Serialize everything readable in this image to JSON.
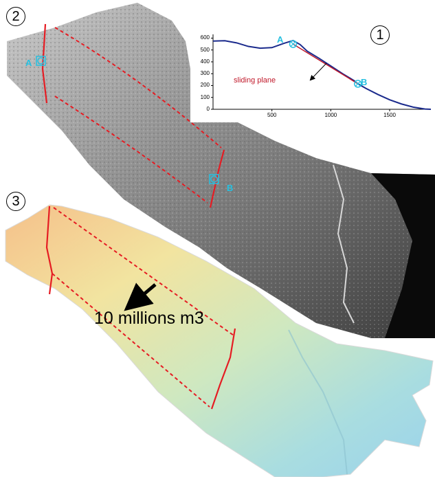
{
  "panels": {
    "profile_number": "1",
    "photo_number": "2",
    "model_number": "3"
  },
  "profile": {
    "point_a": "A",
    "point_b": "B",
    "sliding_label": "sliding plane",
    "colors": {
      "profile": "#1a2a8c",
      "sliding_plane": "#c0182a",
      "markers": "#27c0e0"
    }
  },
  "photo": {
    "point_a": "A",
    "point_b": "B"
  },
  "model": {
    "volume_label": "10 millions m3"
  },
  "chart_data": {
    "type": "line",
    "title": "",
    "xlabel": "",
    "ylabel": "",
    "xlim": [
      0,
      1850
    ],
    "ylim": [
      0,
      620
    ],
    "x_ticks": [
      "500",
      "1000",
      "1500"
    ],
    "y_ticks": [
      "0",
      "100",
      "200",
      "300",
      "400",
      "500",
      "600"
    ],
    "series": [
      {
        "x": [
          0,
          100,
          200,
          300,
          400,
          500,
          600,
          680,
          740,
          800,
          900,
          1000,
          1100,
          1200,
          1230,
          1300,
          1400,
          1500,
          1600,
          1700,
          1800,
          1850
        ],
        "y": [
          575,
          578,
          560,
          530,
          515,
          520,
          555,
          580,
          545,
          490,
          430,
          365,
          300,
          240,
          215,
          175,
          125,
          80,
          45,
          18,
          2,
          0
        ]
      },
      {
        "x": [
          680,
          1230
        ],
        "y": [
          550,
          215
        ]
      }
    ],
    "points": [
      {
        "label": "A",
        "x": 680,
        "y": 550
      },
      {
        "label": "B",
        "x": 1230,
        "y": 215
      }
    ],
    "annotations": [
      "sliding plane"
    ]
  }
}
